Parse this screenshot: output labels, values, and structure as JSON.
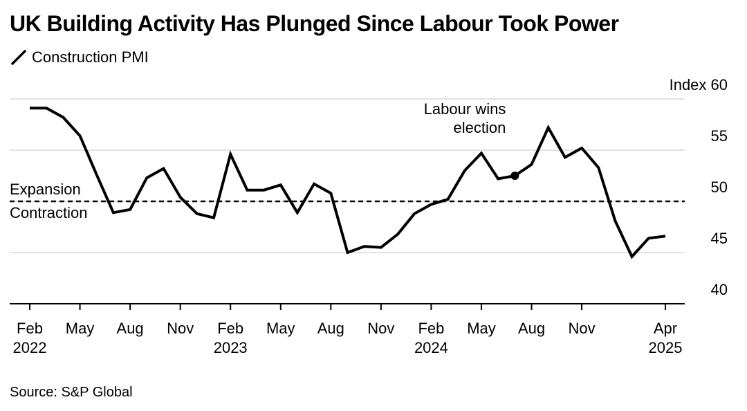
{
  "title": "UK Building Activity Has Plunged Since Labour Took Power",
  "legend": {
    "series_label": "Construction PMI"
  },
  "source": "Source: S&P Global",
  "chart_data": {
    "type": "line",
    "title": "UK Building Activity Has Plunged Since Labour Took Power",
    "ylabel": "Index",
    "y_unit_label": "Index 60",
    "ylim": [
      40,
      60
    ],
    "y_ticks": [
      {
        "value": 60,
        "label": "Index 60"
      },
      {
        "value": 55,
        "label": "55"
      },
      {
        "value": 50,
        "label": "50"
      },
      {
        "value": 45,
        "label": "45"
      },
      {
        "value": 40,
        "label": "40"
      }
    ],
    "x_ticks": [
      {
        "date": "2022-02",
        "label": "Feb",
        "year": "2022"
      },
      {
        "date": "2022-05",
        "label": "May",
        "year": ""
      },
      {
        "date": "2022-08",
        "label": "Aug",
        "year": ""
      },
      {
        "date": "2022-11",
        "label": "Nov",
        "year": ""
      },
      {
        "date": "2023-02",
        "label": "Feb",
        "year": "2023"
      },
      {
        "date": "2023-05",
        "label": "May",
        "year": ""
      },
      {
        "date": "2023-08",
        "label": "Aug",
        "year": ""
      },
      {
        "date": "2023-11",
        "label": "Nov",
        "year": ""
      },
      {
        "date": "2024-02",
        "label": "Feb",
        "year": "2024"
      },
      {
        "date": "2024-05",
        "label": "May",
        "year": ""
      },
      {
        "date": "2024-08",
        "label": "Aug",
        "year": ""
      },
      {
        "date": "2024-11",
        "label": "Nov",
        "year": ""
      },
      {
        "date": "2025-04",
        "label": "Apr",
        "year": "2025"
      }
    ],
    "xlim": [
      "2022-02",
      "2025-05"
    ],
    "reference_line": {
      "value": 50,
      "style": "dashed",
      "above_label": "Expansion",
      "below_label": "Contraction"
    },
    "annotation": {
      "date": "2024-07",
      "value": 52.5,
      "lines": [
        "Labour wins",
        "election"
      ]
    },
    "grid": "horizontal",
    "series": [
      {
        "name": "Construction PMI",
        "color": "#000000",
        "x": [
          "2022-02",
          "2022-03",
          "2022-04",
          "2022-05",
          "2022-06",
          "2022-07",
          "2022-08",
          "2022-09",
          "2022-10",
          "2022-11",
          "2022-12",
          "2023-01",
          "2023-02",
          "2023-03",
          "2023-04",
          "2023-05",
          "2023-06",
          "2023-07",
          "2023-08",
          "2023-09",
          "2023-10",
          "2023-11",
          "2023-12",
          "2024-01",
          "2024-02",
          "2024-03",
          "2024-04",
          "2024-05",
          "2024-06",
          "2024-07",
          "2024-08",
          "2024-09",
          "2024-10",
          "2024-11",
          "2024-12",
          "2025-01",
          "2025-02",
          "2025-03",
          "2025-04"
        ],
        "values": [
          59.1,
          59.1,
          58.2,
          56.4,
          52.6,
          48.9,
          49.2,
          52.3,
          53.2,
          50.4,
          48.8,
          48.4,
          54.6,
          51.1,
          51.1,
          51.6,
          48.9,
          51.7,
          50.8,
          45.0,
          45.6,
          45.5,
          46.8,
          48.8,
          49.7,
          50.2,
          53.0,
          54.7,
          52.2,
          52.5,
          53.6,
          57.2,
          54.3,
          55.2,
          53.3,
          48.1,
          44.6,
          46.4,
          46.6
        ]
      }
    ]
  }
}
